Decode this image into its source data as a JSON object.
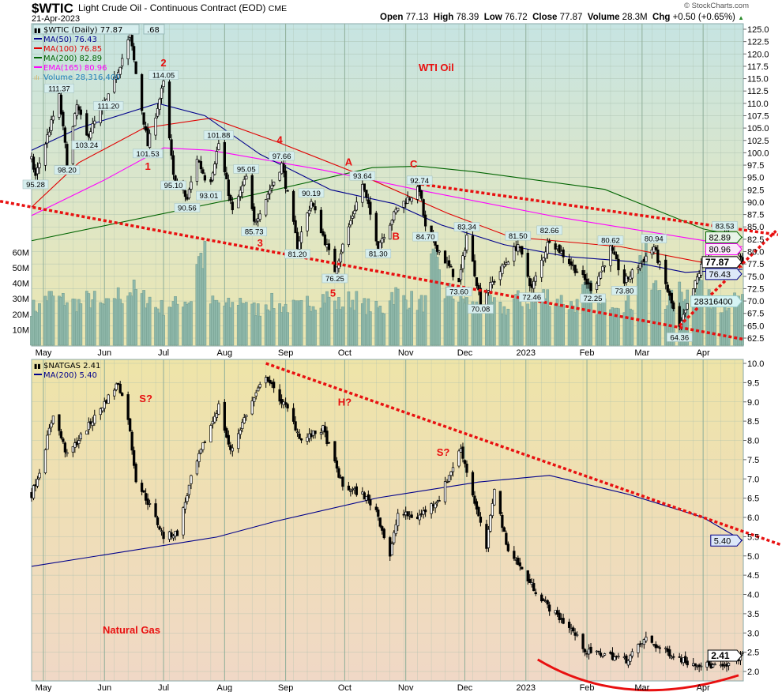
{
  "header": {
    "symbol": "$WTIC",
    "name": "Light Crude Oil - Continuous Contract (EOD)",
    "exchange": "CME",
    "date": "21-Apr-2023",
    "watermark": "© StockCharts.com",
    "quote": {
      "open_label": "Open",
      "open": "77.13",
      "high_label": "High",
      "high": "78.39",
      "low_label": "Low",
      "low": "76.72",
      "close_label": "Close",
      "close": "77.87",
      "volume_label": "Volume",
      "volume": "28.3M",
      "chg_label": "Chg",
      "chg": "+0.50 (+0.65%)"
    }
  },
  "colors": {
    "ma50": "#00008b",
    "ma100": "#e00000",
    "ma200": "#006400",
    "ema165": "#ff00ff",
    "volume": "#1e7fb8",
    "trendline": "#e81010",
    "annotation": "#e81010",
    "volume_bar": "#8fb8aa"
  },
  "chart_data": [
    {
      "type": "candlestick",
      "title": "$WTIC (Daily) 77.87",
      "panel_label": "WTI Oil",
      "legend": [
        {
          "key": "ma50",
          "text": "MA(50) 76.43"
        },
        {
          "key": "ma100",
          "text": "MA(100) 76.85"
        },
        {
          "key": "ma200",
          "text": "MA(200) 82.89"
        },
        {
          "key": "ema165",
          "text": "EMA(165) 80.96"
        },
        {
          "key": "volume",
          "text": "Volume 28,316,400"
        }
      ],
      "yrange": [
        62.5,
        125.0
      ],
      "yticks": [
        "125.0",
        "122.5",
        "120.0",
        "117.5",
        "115.0",
        "112.5",
        "110.0",
        "107.5",
        "105.0",
        "102.5",
        "100.0",
        "97.5",
        "95.0",
        "92.5",
        "90.0",
        "87.5",
        "85.0",
        "82.5",
        "80.0",
        "77.5",
        "75.0",
        "72.5",
        "70.0",
        "67.5",
        "65.0",
        "62.5"
      ],
      "volume_ticks": [
        "60M",
        "50M",
        "40M",
        "30M",
        "20M",
        "10M"
      ],
      "xrange": [
        "2022-04-25",
        "2023-04-21"
      ],
      "xticks": [
        {
          "date": "2022-05-01",
          "label": "May"
        },
        {
          "date": "2022-06-01",
          "label": "Jun"
        },
        {
          "date": "2022-07-01",
          "label": "Jul"
        },
        {
          "date": "2022-08-01",
          "label": "Aug"
        },
        {
          "date": "2022-09-01",
          "label": "Sep"
        },
        {
          "date": "2022-10-01",
          "label": "Oct"
        },
        {
          "date": "2022-11-01",
          "label": "Nov"
        },
        {
          "date": "2022-12-01",
          "label": "Dec"
        },
        {
          "date": "2023-01-01",
          "label": "2023"
        },
        {
          "date": "2023-02-01",
          "label": "Feb"
        },
        {
          "date": "2023-03-01",
          "label": "Mar"
        },
        {
          "date": "2023-04-01",
          "label": "Apr"
        }
      ],
      "price_path": [
        [
          "2022-04-25",
          98.5
        ],
        [
          "2022-04-27",
          95.28
        ],
        [
          "2022-05-09",
          111.37
        ],
        [
          "2022-05-13",
          98.2
        ],
        [
          "2022-05-18",
          109.5
        ],
        [
          "2022-05-23",
          103.24
        ],
        [
          "2022-06-03",
          111.2
        ],
        [
          "2022-06-14",
          123.68
        ],
        [
          "2022-06-17",
          116
        ],
        [
          "2022-06-23",
          101.53
        ],
        [
          "2022-07-01",
          114.05
        ],
        [
          "2022-07-06",
          95.1
        ],
        [
          "2022-07-13",
          90.56
        ],
        [
          "2022-07-18",
          99
        ],
        [
          "2022-07-24",
          93.01
        ],
        [
          "2022-07-29",
          101.88
        ],
        [
          "2022-08-05",
          88
        ],
        [
          "2022-08-12",
          95.05
        ],
        [
          "2022-08-16",
          85.73
        ],
        [
          "2022-08-30",
          97.66
        ],
        [
          "2022-09-07",
          81.2
        ],
        [
          "2022-09-14",
          90.19
        ],
        [
          "2022-09-26",
          76.25
        ],
        [
          "2022-10-10",
          93.64
        ],
        [
          "2022-10-18",
          81.3
        ],
        [
          "2022-10-28",
          89
        ],
        [
          "2022-11-08",
          92.74
        ],
        [
          "2022-11-11",
          84.7
        ],
        [
          "2022-11-28",
          73.6
        ],
        [
          "2022-12-02",
          83.34
        ],
        [
          "2022-12-09",
          70.08
        ],
        [
          "2022-12-28",
          81.5
        ],
        [
          "2023-01-04",
          72.46
        ],
        [
          "2023-01-13",
          82.66
        ],
        [
          "2023-02-04",
          72.25
        ],
        [
          "2023-02-13",
          80.62
        ],
        [
          "2023-02-20",
          73.8
        ],
        [
          "2023-03-07",
          80.94
        ],
        [
          "2023-03-20",
          64.36
        ],
        [
          "2023-04-03",
          80.4
        ],
        [
          "2023-04-12",
          83.53
        ],
        [
          "2023-04-18",
          80.5
        ],
        [
          "2023-04-21",
          77.87
        ]
      ],
      "overlays": {
        "ma200": [
          [
            "2022-04-25",
            82.2
          ],
          [
            "2022-08-10",
            91
          ],
          [
            "2022-10-15",
            97
          ],
          [
            "2022-11-08",
            97.3
          ],
          [
            "2022-12-05",
            96.2
          ],
          [
            "2023-02-10",
            92.6
          ],
          [
            "2023-04-01",
            84.6
          ],
          [
            "2023-04-21",
            82.89
          ]
        ],
        "ema165": [
          [
            "2022-04-25",
            87.3
          ],
          [
            "2022-06-01",
            94.5
          ],
          [
            "2022-07-01",
            101
          ],
          [
            "2022-07-25",
            100.5
          ],
          [
            "2022-09-20",
            96.5
          ],
          [
            "2022-11-06",
            92.6
          ],
          [
            "2023-01-17",
            87
          ],
          [
            "2023-04-21",
            80.96
          ]
        ],
        "ma100": [
          [
            "2022-04-25",
            89
          ],
          [
            "2022-05-19",
            98
          ],
          [
            "2022-06-21",
            105
          ],
          [
            "2022-07-25",
            107
          ],
          [
            "2022-08-29",
            102
          ],
          [
            "2022-10-08",
            95.7
          ],
          [
            "2022-11-22",
            87.8
          ],
          [
            "2022-12-24",
            83
          ],
          [
            "2023-02-18",
            81
          ],
          [
            "2023-04-06",
            77.4
          ],
          [
            "2023-04-21",
            76.85
          ]
        ],
        "ma50": [
          [
            "2022-04-25",
            100.5
          ],
          [
            "2022-05-19",
            105
          ],
          [
            "2022-06-28",
            110
          ],
          [
            "2022-07-22",
            107.5
          ],
          [
            "2022-08-19",
            99.7
          ],
          [
            "2022-09-24",
            92.5
          ],
          [
            "2022-10-26",
            89.7
          ],
          [
            "2022-11-19",
            85.4
          ],
          [
            "2022-12-21",
            81.4
          ],
          [
            "2023-01-22",
            79
          ],
          [
            "2023-02-23",
            78
          ],
          [
            "2023-03-23",
            75.8
          ],
          [
            "2023-04-21",
            76.43
          ]
        ]
      },
      "volume_weekly_millions": [
        25,
        32,
        30,
        28,
        30,
        26,
        33,
        36,
        31,
        25,
        27,
        30,
        58,
        28,
        26,
        30,
        24,
        28,
        26,
        25,
        29,
        32,
        27,
        30,
        26,
        24,
        34,
        30,
        28,
        52,
        35,
        30,
        26,
        27,
        24,
        30,
        28,
        33,
        30,
        27,
        35,
        26,
        30,
        28,
        55,
        38,
        30,
        35,
        42,
        30,
        28,
        29
      ],
      "value_labels": [
        [
          "2022-04-27",
          95.28,
          "low"
        ],
        [
          "2022-05-13",
          98.2,
          "low"
        ],
        [
          "2022-05-09",
          111.37,
          "high"
        ],
        [
          "2022-05-23",
          103.24,
          "low"
        ],
        [
          "2022-06-03",
          111.2,
          "low"
        ],
        [
          "2022-06-23",
          101.53,
          "low"
        ],
        [
          "2022-07-01",
          114.05,
          "high"
        ],
        [
          "2022-07-06",
          95.1,
          "low"
        ],
        [
          "2022-07-13",
          90.56,
          "low"
        ],
        [
          "2022-07-24",
          93.01,
          "low"
        ],
        [
          "2022-07-29",
          101.88,
          "high"
        ],
        [
          "2022-08-12",
          95.05,
          "high"
        ],
        [
          "2022-08-16",
          85.73,
          "low"
        ],
        [
          "2022-08-30",
          97.66,
          "high"
        ],
        [
          "2022-09-07",
          81.2,
          "low"
        ],
        [
          "2022-09-14",
          90.19,
          "high"
        ],
        [
          "2022-09-26",
          76.25,
          "low"
        ],
        [
          "2022-10-10",
          93.64,
          "high"
        ],
        [
          "2022-10-18",
          81.3,
          "low"
        ],
        [
          "2022-11-08",
          92.74,
          "high"
        ],
        [
          "2022-11-11",
          84.7,
          "low"
        ],
        [
          "2022-11-28",
          73.6,
          "low"
        ],
        [
          "2022-12-02",
          83.34,
          "high"
        ],
        [
          "2022-12-09",
          70.08,
          "low"
        ],
        [
          "2022-12-28",
          81.5,
          "high"
        ],
        [
          "2023-01-04",
          72.46,
          "low"
        ],
        [
          "2023-01-13",
          82.66,
          "high"
        ],
        [
          "2023-02-04",
          72.25,
          "low"
        ],
        [
          "2023-02-13",
          80.62,
          "high"
        ],
        [
          "2023-02-20",
          73.8,
          "low"
        ],
        [
          "2023-03-07",
          80.94,
          "high"
        ],
        [
          "2023-03-20",
          64.36,
          "low"
        ],
        [
          "2023-04-12",
          83.53,
          "high"
        ]
      ],
      "top_label": ".68",
      "right_tags": [
        {
          "key": "ma200",
          "value": 82.89,
          "text": "82.89"
        },
        {
          "key": "ema165",
          "value": 80.96,
          "text": "80.96"
        },
        {
          "key": "close",
          "value": 77.87,
          "text": "77.87"
        },
        {
          "key": "ma50",
          "value": 76.43,
          "text": "76.43"
        },
        {
          "key": "volume",
          "value_millions": 28.3,
          "text": "28316400"
        }
      ],
      "trendlines": [
        {
          "from": [
            "2022-04-09",
            90.2
          ],
          "to": [
            "2023-04-21",
            62.3
          ]
        },
        {
          "from": [
            "2022-11-06",
            93.8
          ],
          "to": [
            "2023-05-09",
            83.4
          ]
        },
        {
          "from": [
            "2023-03-20",
            65.0
          ],
          "to": [
            "2023-05-08",
            84.2
          ]
        }
      ],
      "annotations": [
        {
          "text": "1",
          "date": "2022-06-23",
          "price": 97.5
        },
        {
          "text": "2",
          "date": "2022-07-01",
          "price": 117.5
        },
        {
          "text": "3",
          "date": "2022-08-19",
          "price": 83.0
        },
        {
          "text": "4",
          "date": "2022-08-29",
          "price": 100.0
        },
        {
          "text": "5",
          "date": "2022-09-25",
          "price": 72.5
        },
        {
          "text": "A",
          "date": "2022-10-03",
          "price": 95.2
        },
        {
          "text": "B",
          "date": "2022-10-27",
          "price": 81.0
        },
        {
          "text": "C",
          "date": "2022-11-05",
          "price": 95.4
        }
      ]
    },
    {
      "type": "candlestick",
      "title": "$NATGAS 2.41",
      "panel_label": "Natural Gas",
      "legend": [
        {
          "key": "ma50",
          "text": "MA(200) 5.40"
        }
      ],
      "yrange": [
        2.0,
        10.0
      ],
      "yticks": [
        "10.0",
        "9.5",
        "9.0",
        "8.5",
        "8.0",
        "7.5",
        "7.0",
        "6.5",
        "6.0",
        "5.5",
        "5.0",
        "4.5",
        "4.0",
        "3.5",
        "3.0",
        "2.5",
        "2.0"
      ],
      "price_path": [
        [
          "2022-04-25",
          6.6
        ],
        [
          "2022-04-29",
          7.2
        ],
        [
          "2022-05-06",
          8.7
        ],
        [
          "2022-05-13",
          7.6
        ],
        [
          "2022-05-20",
          8.1
        ],
        [
          "2022-05-27",
          8.6
        ],
        [
          "2022-06-08",
          9.5
        ],
        [
          "2022-06-13",
          8.6
        ],
        [
          "2022-06-17",
          7.0
        ],
        [
          "2022-06-24",
          6.3
        ],
        [
          "2022-07-01",
          5.5
        ],
        [
          "2022-07-08",
          5.6
        ],
        [
          "2022-07-15",
          7.0
        ],
        [
          "2022-07-22",
          8.0
        ],
        [
          "2022-07-29",
          8.9
        ],
        [
          "2022-08-04",
          7.7
        ],
        [
          "2022-08-12",
          8.7
        ],
        [
          "2022-08-22",
          9.7
        ],
        [
          "2022-08-26",
          9.3
        ],
        [
          "2022-09-02",
          8.8
        ],
        [
          "2022-09-09",
          8.0
        ],
        [
          "2022-09-20",
          8.3
        ],
        [
          "2022-09-30",
          6.8
        ],
        [
          "2022-10-10",
          6.6
        ],
        [
          "2022-10-17",
          6.2
        ],
        [
          "2022-10-24",
          5.0
        ],
        [
          "2022-10-28",
          6.1
        ],
        [
          "2022-11-07",
          6.0
        ],
        [
          "2022-11-18",
          6.5
        ],
        [
          "2022-11-29",
          7.8
        ],
        [
          "2022-12-05",
          6.6
        ],
        [
          "2022-12-12",
          5.2
        ],
        [
          "2022-12-16",
          6.8
        ],
        [
          "2022-12-22",
          5.3
        ],
        [
          "2023-01-03",
          4.3
        ],
        [
          "2023-01-12",
          3.7
        ],
        [
          "2023-01-24",
          3.1
        ],
        [
          "2023-02-01",
          2.5
        ],
        [
          "2023-02-10",
          2.45
        ],
        [
          "2023-02-21",
          2.3
        ],
        [
          "2023-03-03",
          2.85
        ],
        [
          "2023-03-10",
          2.6
        ],
        [
          "2023-03-24",
          2.25
        ],
        [
          "2023-04-05",
          2.15
        ],
        [
          "2023-04-12",
          2.1
        ],
        [
          "2023-04-17",
          2.3
        ],
        [
          "2023-04-21",
          2.41
        ]
      ],
      "overlays": {
        "ma200": [
          [
            "2022-04-25",
            4.73
          ],
          [
            "2022-07-28",
            5.49
          ],
          [
            "2022-08-27",
            5.9
          ],
          [
            "2022-10-18",
            6.51
          ],
          [
            "2022-12-08",
            6.92
          ],
          [
            "2023-01-13",
            7.09
          ],
          [
            "2023-02-22",
            6.6
          ],
          [
            "2023-04-01",
            6.0
          ],
          [
            "2023-04-21",
            5.4
          ]
        ]
      },
      "right_tags": [
        {
          "key": "ma50",
          "value": 5.4,
          "text": "5.40"
        },
        {
          "key": "close",
          "value": 2.41,
          "text": "2.41"
        }
      ],
      "trendlines": [
        {
          "from": [
            "2022-08-22",
            10.0
          ],
          "to": [
            "2023-05-11",
            5.28
          ]
        }
      ],
      "arc": {
        "from": [
          "2023-01-07",
          2.31
        ],
        "via": [
          "2023-02-20",
          1.47
        ],
        "to": [
          "2023-04-19",
          1.9
        ]
      },
      "annotations": [
        {
          "text": "S?",
          "date": "2022-06-22",
          "price": 9.0
        },
        {
          "text": "H?",
          "date": "2022-10-01",
          "price": 8.9
        },
        {
          "text": "S?",
          "date": "2022-11-20",
          "price": 7.6
        }
      ]
    }
  ]
}
